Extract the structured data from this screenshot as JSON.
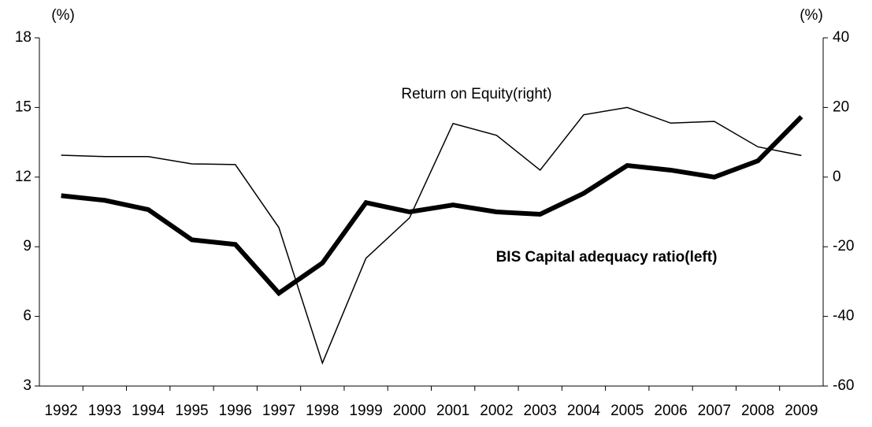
{
  "chart_data": {
    "type": "line",
    "y_unit_label": "(%)",
    "y2_unit_label": "(%)",
    "categories": [
      "1992",
      "1993",
      "1994",
      "1995",
      "1996",
      "1997",
      "1998",
      "1999",
      "2000",
      "2001",
      "2002",
      "2003",
      "2004",
      "2005",
      "2006",
      "2007",
      "2008",
      "2009"
    ],
    "series": [
      {
        "name": "BIS Capital adequacy ratio(left)",
        "color": "#000000",
        "axis": "y",
        "values": [
          11.2,
          11.0,
          10.6,
          9.3,
          9.1,
          7.0,
          8.3,
          10.9,
          10.5,
          10.8,
          10.5,
          10.4,
          11.3,
          12.5,
          12.3,
          12.0,
          12.7,
          14.6
        ]
      },
      {
        "name": "Return on Equity(right)",
        "color": "#000000",
        "axis": "y2",
        "values": [
          6.3,
          5.9,
          5.9,
          3.8,
          3.6,
          -14.5,
          -53.4,
          -23.3,
          -11.7,
          15.4,
          12.0,
          2.0,
          17.9,
          20.0,
          15.5,
          16.0,
          8.7,
          6.2
        ]
      }
    ],
    "ylim": [
      3,
      18
    ],
    "yticks": [
      3,
      6,
      9,
      12,
      15,
      18
    ],
    "y2lim": [
      -60,
      40
    ],
    "y2ticks": [
      -60,
      -40,
      -20,
      0,
      20,
      40
    ],
    "grid": false
  }
}
